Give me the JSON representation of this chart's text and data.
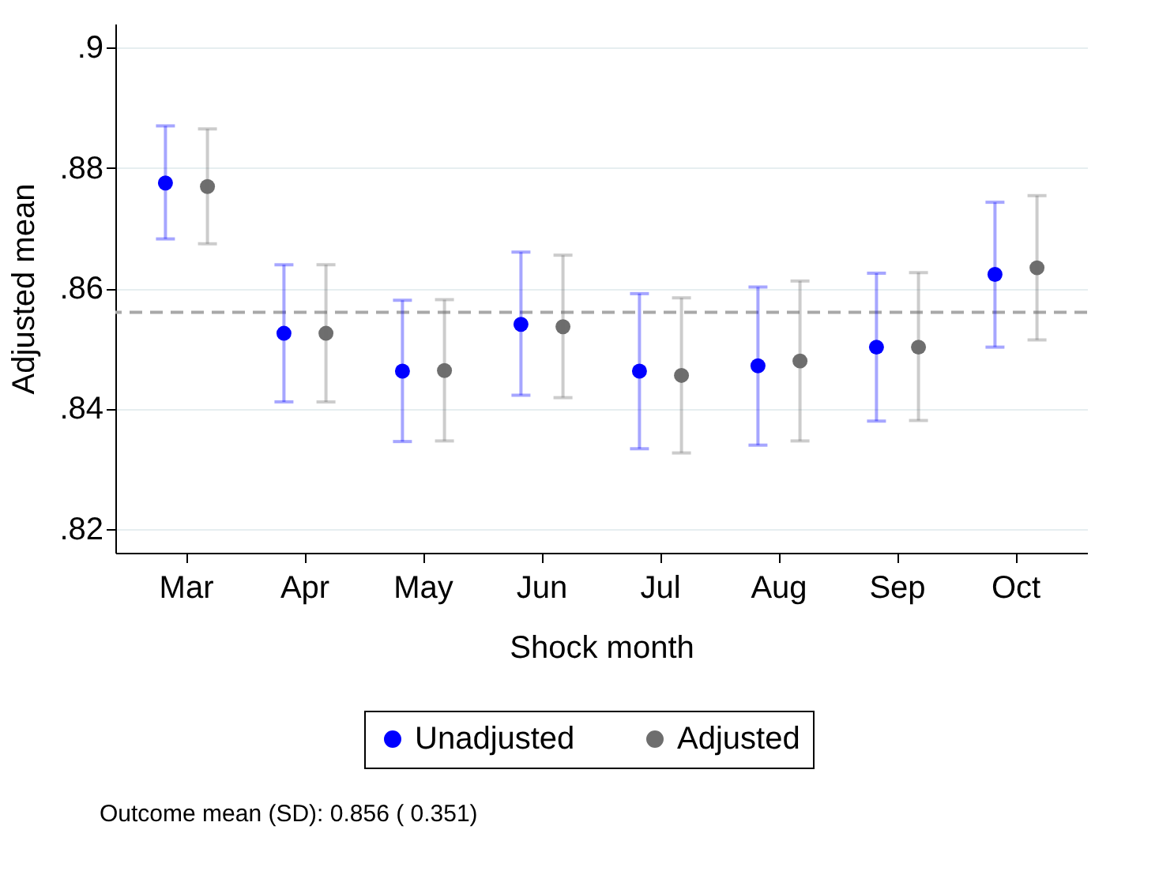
{
  "chart_data": {
    "type": "scatter",
    "xlabel": "Shock month",
    "ylabel": "Adjusted mean",
    "categories": [
      "Mar",
      "Apr",
      "May",
      "Jun",
      "Jul",
      "Aug",
      "Sep",
      "Oct"
    ],
    "series": [
      {
        "name": "Unadjusted",
        "color": "#0000ff",
        "values": [
          0.8775,
          0.8525,
          0.8462,
          0.854,
          0.8462,
          0.8471,
          0.8502,
          0.8623
        ],
        "errors": [
          [
            0.8682,
            0.887
          ],
          [
            0.8411,
            0.8639
          ],
          [
            0.8345,
            0.858
          ],
          [
            0.8422,
            0.866
          ],
          [
            0.8333,
            0.8591
          ],
          [
            0.8339,
            0.8602
          ],
          [
            0.8379,
            0.8625
          ],
          [
            0.8502,
            0.8743
          ]
        ]
      },
      {
        "name": "Adjusted",
        "color": "#6e6e6e",
        "values": [
          0.8769,
          0.8525,
          0.8463,
          0.8536,
          0.8455,
          0.8479,
          0.8502,
          0.8634
        ],
        "errors": [
          [
            0.8674,
            0.8865
          ],
          [
            0.8411,
            0.8639
          ],
          [
            0.8346,
            0.8581
          ],
          [
            0.8418,
            0.8655
          ],
          [
            0.8326,
            0.8584
          ],
          [
            0.8346,
            0.8612
          ],
          [
            0.838,
            0.8626
          ],
          [
            0.8514,
            0.8754
          ]
        ]
      }
    ],
    "ylim": [
      0.816,
      0.904
    ],
    "yticks": [
      {
        "value": 0.82,
        "label": ".82"
      },
      {
        "value": 0.84,
        "label": ".84"
      },
      {
        "value": 0.86,
        "label": ".86"
      },
      {
        "value": 0.88,
        "label": ".88"
      },
      {
        "value": 0.9,
        "label": ".9"
      }
    ],
    "ref_lines": [
      {
        "axis": "y",
        "value": 0.856,
        "color": "#a8a8a8",
        "line_style": "dashed"
      }
    ],
    "annotations": [
      "Outcome mean (SD):  0.856 ( 0.351)"
    ],
    "grid": "y",
    "legend": "bottom",
    "marker": "circle"
  }
}
